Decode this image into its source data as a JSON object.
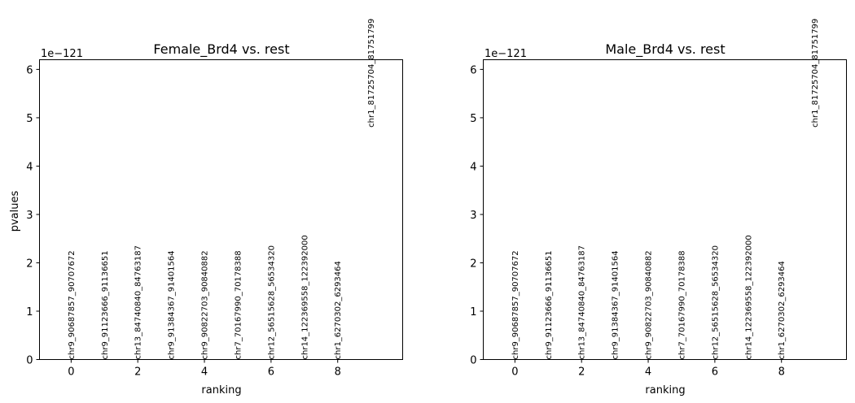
{
  "chart_data": [
    {
      "type": "scatter",
      "title": "Female_Brd4 vs. rest",
      "xlabel": "ranking",
      "ylabel": "pvalues",
      "offset_text": "1e−121",
      "xlim": [
        -0.95,
        9.95
      ],
      "ylim": [
        0,
        6.2
      ],
      "xticks": [
        0,
        2,
        4,
        6,
        8
      ],
      "yticks": [
        0,
        1,
        2,
        3,
        4,
        5,
        6
      ],
      "points": [
        {
          "x": 0,
          "y": 0.0,
          "label": "chr9_90687857_90707672"
        },
        {
          "x": 1,
          "y": 0.0,
          "label": "chr9_91123666_91136651"
        },
        {
          "x": 2,
          "y": 0.0,
          "label": "chr13_84740840_84763187"
        },
        {
          "x": 3,
          "y": 0.0,
          "label": "chr9_91384367_91401564"
        },
        {
          "x": 4,
          "y": 0.0,
          "label": "chr9_90822703_90840882"
        },
        {
          "x": 5,
          "y": 0.0,
          "label": "chr7_70167990_70178388"
        },
        {
          "x": 6,
          "y": 0.0,
          "label": "chr12_56515628_56534320"
        },
        {
          "x": 7,
          "y": 0.0,
          "label": "chr14_122369558_122392000"
        },
        {
          "x": 8,
          "y": 0.0,
          "label": "chr1_6270302_6293464"
        },
        {
          "x": 9,
          "y": 4.8,
          "label": "chr1_81725704_81751799"
        }
      ]
    },
    {
      "type": "scatter",
      "title": "Male_Brd4 vs. rest",
      "xlabel": "ranking",
      "ylabel": "",
      "offset_text": "1e−121",
      "xlim": [
        -0.95,
        9.95
      ],
      "ylim": [
        0,
        6.2
      ],
      "xticks": [
        0,
        2,
        4,
        6,
        8
      ],
      "yticks": [
        0,
        1,
        2,
        3,
        4,
        5,
        6
      ],
      "points": [
        {
          "x": 0,
          "y": 0.0,
          "label": "chr9_90687857_90707672"
        },
        {
          "x": 1,
          "y": 0.0,
          "label": "chr9_91123666_91136651"
        },
        {
          "x": 2,
          "y": 0.0,
          "label": "chr13_84740840_84763187"
        },
        {
          "x": 3,
          "y": 0.0,
          "label": "chr9_91384367_91401564"
        },
        {
          "x": 4,
          "y": 0.0,
          "label": "chr9_90822703_90840882"
        },
        {
          "x": 5,
          "y": 0.0,
          "label": "chr7_70167990_70178388"
        },
        {
          "x": 6,
          "y": 0.0,
          "label": "chr12_56515628_56534320"
        },
        {
          "x": 7,
          "y": 0.0,
          "label": "chr14_122369558_122392000"
        },
        {
          "x": 8,
          "y": 0.0,
          "label": "chr1_6270302_6293464"
        },
        {
          "x": 9,
          "y": 4.8,
          "label": "chr1_81725704_81751799"
        }
      ]
    }
  ]
}
